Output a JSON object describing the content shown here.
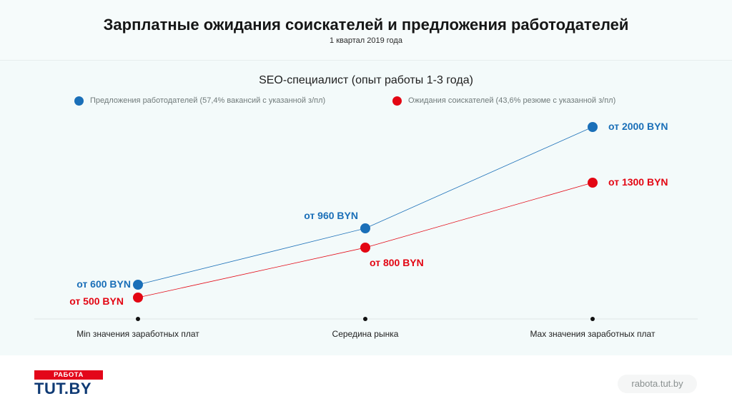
{
  "header": {
    "title": "Зарплатные ожидания соискателей и предложения работодателей",
    "subtitle": "1 квартал 2019 года"
  },
  "chart_data": {
    "type": "line",
    "title": "SEO-специалист (опыт работы 1-3 года)",
    "categories": [
      "Min значения заработных плат",
      "Середина рынка",
      "Max значения заработных плат"
    ],
    "series": [
      {
        "name": "Предложения работодателей (57,4% вакансий с указанной з/пл)",
        "color": "#1a6fb8",
        "values": [
          600,
          960,
          2000
        ],
        "labels": [
          "от 600 BYN",
          "от 960 BYN",
          "от 2000 BYN"
        ]
      },
      {
        "name": "Ожидания соискателей (43,6% резюме с указанной з/пл)",
        "color": "#e30613",
        "values": [
          500,
          800,
          1300
        ],
        "labels": [
          "от 500 BYN",
          "от 800 BYN",
          "от 1300 BYN"
        ]
      }
    ],
    "grid": false,
    "legend_position": "top"
  },
  "footer": {
    "logo_top": "РАБОТА",
    "logo_main": "TUT.BY",
    "site": "rabota.tut.by"
  }
}
